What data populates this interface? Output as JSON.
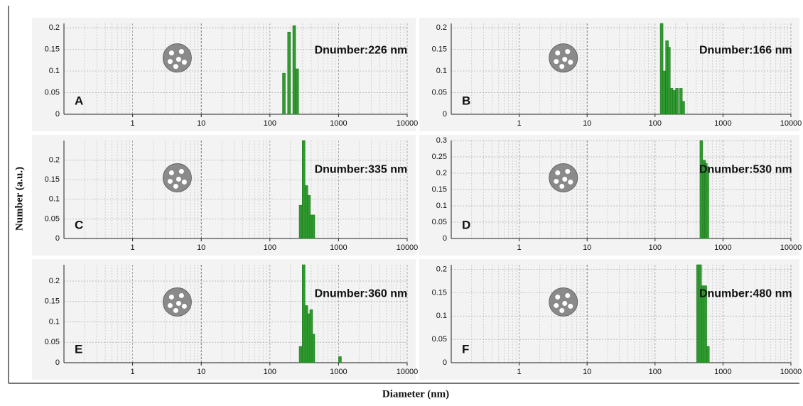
{
  "ylabel": "Number (a.u.)",
  "xlabel": "Diameter (nm)",
  "chart_data": [
    {
      "type": "bar",
      "label": "A",
      "annotation": "Dnumber:226 nm",
      "xscale": "log",
      "xlim": [
        0.1,
        10000
      ],
      "xticks": [
        1,
        10,
        100,
        1000,
        10000
      ],
      "ylim": [
        0,
        0.21
      ],
      "yticks": [
        0,
        0.05,
        0.1,
        0.15,
        0.2
      ],
      "grid": true,
      "color": "#2f9a2f",
      "x": [
        160,
        190,
        226,
        250
      ],
      "values": [
        0.095,
        0.19,
        0.205,
        0.105
      ]
    },
    {
      "type": "bar",
      "label": "B",
      "annotation": "Dnumber:166 nm",
      "xscale": "log",
      "xlim": [
        0.1,
        10000
      ],
      "xticks": [
        1,
        10,
        100,
        1000,
        10000
      ],
      "ylim": [
        0,
        0.21
      ],
      "yticks": [
        0,
        0.05,
        0.1,
        0.15,
        0.2
      ],
      "grid": true,
      "color": "#2f9a2f",
      "x": [
        125,
        135,
        150,
        160,
        175,
        190,
        210,
        240,
        260
      ],
      "values": [
        0.21,
        0.1,
        0.17,
        0.155,
        0.06,
        0.055,
        0.06,
        0.06,
        0.03
      ]
    },
    {
      "type": "bar",
      "label": "C",
      "annotation": "Dnumber:335 nm",
      "xscale": "log",
      "xlim": [
        0.1,
        10000
      ],
      "xticks": [
        1,
        10,
        100,
        1000,
        10000
      ],
      "ylim": [
        0,
        0.25
      ],
      "yticks": [
        0,
        0.05,
        0.1,
        0.15,
        0.2
      ],
      "grid": true,
      "color": "#2f9a2f",
      "x": [
        280,
        310,
        340,
        370,
        400,
        430
      ],
      "values": [
        0.085,
        0.25,
        0.135,
        0.11,
        0.06,
        0.06
      ]
    },
    {
      "type": "bar",
      "label": "D",
      "annotation": "Dnumber:530 nm",
      "xscale": "log",
      "xlim": [
        0.1,
        10000
      ],
      "xticks": [
        1,
        10,
        100,
        1000,
        10000
      ],
      "ylim": [
        0,
        0.3
      ],
      "yticks": [
        0,
        0.05,
        0.1,
        0.15,
        0.2,
        0.25,
        0.3
      ],
      "grid": true,
      "color": "#2f9a2f",
      "x": [
        480,
        530,
        560,
        590
      ],
      "values": [
        0.3,
        0.24,
        0.23,
        0.22
      ]
    },
    {
      "type": "bar",
      "label": "E",
      "annotation": "Dnumber:360 nm",
      "xscale": "log",
      "xlim": [
        0.1,
        10000
      ],
      "xticks": [
        1,
        10,
        100,
        1000,
        10000
      ],
      "ylim": [
        0,
        0.24
      ],
      "yticks": [
        0,
        0.05,
        0.1,
        0.15,
        0.2
      ],
      "grid": true,
      "color": "#2f9a2f",
      "x": [
        280,
        310,
        340,
        370,
        400,
        430,
        1050
      ],
      "values": [
        0.04,
        0.24,
        0.14,
        0.12,
        0.13,
        0.07,
        0.015
      ]
    },
    {
      "type": "bar",
      "label": "F",
      "annotation": "Dnumber:480 nm",
      "xscale": "log",
      "xlim": [
        0.1,
        10000
      ],
      "xticks": [
        1,
        10,
        100,
        1000,
        10000
      ],
      "ylim": [
        0,
        0.21
      ],
      "yticks": [
        0,
        0.05,
        0.1,
        0.15,
        0.2
      ],
      "grid": true,
      "color": "#2f9a2f",
      "x": [
        430,
        460,
        510,
        550,
        600
      ],
      "values": [
        0.21,
        0.21,
        0.165,
        0.165,
        0.035
      ]
    }
  ]
}
